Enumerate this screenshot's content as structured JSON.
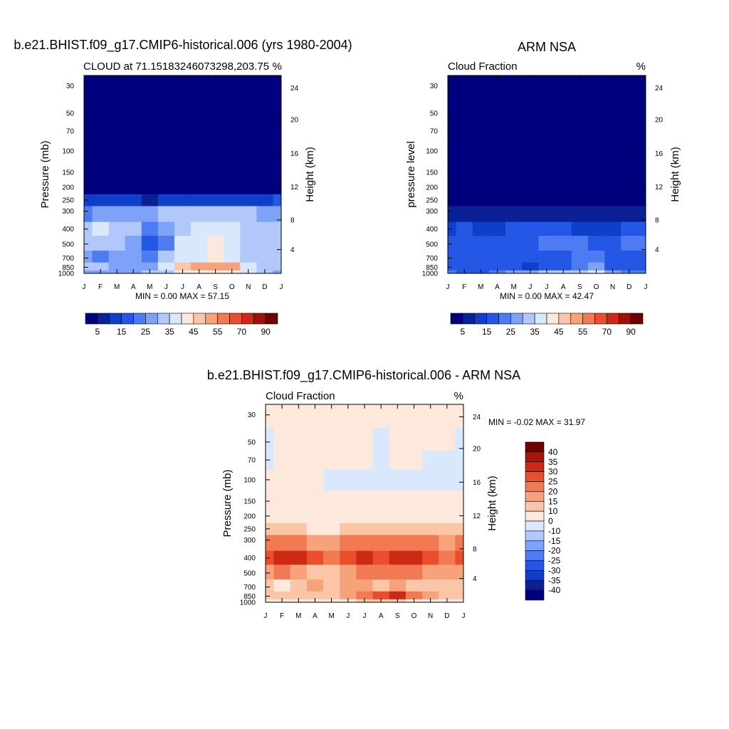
{
  "chart_data": [
    {
      "type": "heatmap",
      "title": "b.e21.BHIST.f09_g17.CMIP6-historical.006 (yrs 1980-2004)",
      "subtitle_left": "CLOUD at 71.15183246073298,203.75",
      "subtitle_right": "%",
      "ylabel": "Pressure (mb)",
      "ylabel_right": "Height (km)",
      "x_ticks": [
        "J",
        "F",
        "M",
        "A",
        "M",
        "J",
        "J",
        "A",
        "S",
        "O",
        "N",
        "D",
        "J"
      ],
      "y_ticks": [
        "30",
        "50",
        "70",
        "100",
        "150",
        "200",
        "250",
        "300",
        "400",
        "500",
        "700",
        "850",
        "1000"
      ],
      "y_ticks_right": [
        "24",
        "20",
        "16",
        "12",
        "8",
        "4"
      ],
      "min_max": "MIN =   0.00 MAX =  57.15",
      "colorbar_labels": [
        "5",
        "15",
        "25",
        "35",
        "45",
        "55",
        "70",
        "90"
      ],
      "colorbar_colors": [
        "#00007f",
        "#0a2196",
        "#0f3fc8",
        "#2557e6",
        "#4d7bf2",
        "#7ea2f8",
        "#b2c8fb",
        "#dae8fd",
        "#fde9db",
        "#fbc6a8",
        "#f7a27b",
        "#f27a52",
        "#ea4e2c",
        "#cc2a14",
        "#9b1208",
        "#6e0000"
      ],
      "z": [
        [
          0,
          0,
          0,
          0,
          0,
          0,
          0,
          0,
          0,
          0,
          0,
          0,
          0
        ],
        [
          0,
          0,
          0,
          0,
          0,
          0,
          0,
          0,
          0,
          0,
          0,
          0,
          0
        ],
        [
          0,
          0,
          0,
          0,
          0,
          0,
          0,
          0,
          0,
          0,
          0,
          0,
          0
        ],
        [
          0,
          0,
          0,
          0,
          0,
          0,
          0,
          0,
          0,
          0,
          0,
          0,
          0
        ],
        [
          1,
          1,
          1,
          1,
          1,
          1,
          1,
          1,
          1,
          1,
          1,
          1,
          1
        ],
        [
          4,
          3,
          3,
          2,
          2,
          3,
          3,
          3,
          3,
          3,
          3,
          3,
          4
        ],
        [
          14,
          12,
          10,
          10,
          9,
          12,
          12,
          12,
          13,
          13,
          13,
          14,
          15
        ],
        [
          22,
          25,
          26,
          27,
          28,
          31,
          33,
          31,
          31,
          31,
          31,
          29,
          26
        ],
        [
          34,
          36,
          33,
          30,
          24,
          28,
          34,
          38,
          38,
          35,
          33,
          31,
          30
        ],
        [
          33,
          34,
          31,
          25,
          17,
          24,
          37,
          39,
          40,
          38,
          31,
          31,
          31
        ],
        [
          27,
          23,
          28,
          28,
          22,
          30,
          36,
          38,
          40,
          39,
          32,
          31,
          31
        ],
        [
          31,
          30,
          28,
          29,
          29,
          36,
          46,
          50,
          54,
          50,
          36,
          31,
          30
        ],
        [
          28,
          27,
          27,
          29,
          30,
          34,
          40,
          42,
          43,
          44,
          36,
          30,
          29
        ]
      ]
    },
    {
      "type": "heatmap",
      "title": "ARM NSA",
      "subtitle_left": "Cloud Fraction",
      "subtitle_right": "%",
      "ylabel": "pressure level",
      "ylabel_right": "Height (km)",
      "x_ticks": [
        "J",
        "F",
        "M",
        "A",
        "M",
        "J",
        "J",
        "A",
        "S",
        "O",
        "N",
        "D",
        "J"
      ],
      "y_ticks": [
        "30",
        "50",
        "70",
        "100",
        "150",
        "200",
        "250",
        "300",
        "400",
        "500",
        "700",
        "850",
        "1000"
      ],
      "y_ticks_right": [
        "24",
        "20",
        "16",
        "12",
        "8",
        "4"
      ],
      "min_max": "MIN =   0.00 MAX =  42.47",
      "colorbar_labels": [
        "5",
        "15",
        "25",
        "35",
        "45",
        "55",
        "70",
        "90"
      ],
      "colorbar_colors": [
        "#00007f",
        "#0a2196",
        "#0f3fc8",
        "#2557e6",
        "#4d7bf2",
        "#7ea2f8",
        "#b2c8fb",
        "#dae8fd",
        "#fde9db",
        "#fbc6a8",
        "#f7a27b",
        "#f27a52",
        "#ea4e2c",
        "#cc2a14",
        "#9b1208",
        "#6e0000"
      ],
      "z": [
        [
          0,
          0,
          0,
          0,
          0,
          0,
          0,
          0,
          0,
          0,
          0,
          0,
          0
        ],
        [
          0,
          0,
          0,
          0,
          0,
          0,
          0,
          0,
          0,
          0,
          0,
          0,
          0
        ],
        [
          0,
          0,
          0,
          0,
          0,
          0,
          0,
          0,
          0,
          0,
          0,
          0,
          0
        ],
        [
          0,
          0,
          0,
          0,
          0,
          0,
          0,
          0,
          0,
          0,
          0,
          0,
          0
        ],
        [
          0,
          0,
          0,
          0,
          0,
          0,
          0,
          0,
          0,
          0,
          0,
          0,
          0
        ],
        [
          1,
          1,
          1,
          1,
          1,
          1,
          1,
          1,
          1,
          1,
          1,
          1,
          1
        ],
        [
          2,
          2,
          2,
          2,
          2,
          2,
          2,
          2,
          2,
          2,
          2,
          2,
          2
        ],
        [
          7,
          9,
          7,
          6,
          7,
          8,
          9,
          8,
          6,
          6,
          6,
          7,
          7
        ],
        [
          14,
          15,
          14,
          13,
          15,
          17,
          16,
          17,
          14,
          12,
          13,
          16,
          15
        ],
        [
          17,
          15,
          16,
          17,
          18,
          18,
          20,
          21,
          20,
          19,
          16,
          21,
          20
        ],
        [
          15,
          16,
          17,
          15,
          16,
          17,
          18,
          17,
          20,
          22,
          16,
          17,
          17
        ],
        [
          18,
          16,
          15,
          16,
          17,
          12,
          16,
          18,
          22,
          26,
          19,
          16,
          16
        ],
        [
          20,
          18,
          18,
          20,
          26,
          26,
          30,
          30,
          32,
          38,
          26,
          20,
          20
        ]
      ]
    },
    {
      "type": "heatmap",
      "title": "b.e21.BHIST.f09_g17.CMIP6-historical.006 - ARM NSA",
      "subtitle_left": "Cloud Fraction",
      "subtitle_right": "%",
      "ylabel": "Pressure (mb)",
      "ylabel_right": "Height (km)",
      "x_ticks": [
        "J",
        "F",
        "M",
        "A",
        "M",
        "J",
        "J",
        "A",
        "S",
        "O",
        "N",
        "D",
        "J"
      ],
      "y_ticks": [
        "30",
        "50",
        "70",
        "100",
        "150",
        "200",
        "250",
        "300",
        "400",
        "500",
        "700",
        "850",
        "1000"
      ],
      "y_ticks_right": [
        "24",
        "20",
        "16",
        "12",
        "8",
        "4"
      ],
      "min_max": "MIN =  -0.02 MAX =  31.97",
      "colorbar_labels": [
        "40",
        "35",
        "30",
        "25",
        "20",
        "15",
        "10",
        "0",
        "-10",
        "-15",
        "-20",
        "-25",
        "-30",
        "-35",
        "-40"
      ],
      "colorbar_colors": [
        "#6e0000",
        "#a51708",
        "#cc2a14",
        "#ea4e2c",
        "#f27a52",
        "#f7a27b",
        "#fbc6a8",
        "#fde9db",
        "#dae8fd",
        "#b2c8fb",
        "#7ea2f8",
        "#4d7bf2",
        "#2557e6",
        "#0f3fc8",
        "#0a2196",
        "#00007f"
      ],
      "z": [
        [
          2,
          2,
          2,
          2,
          2,
          2,
          2,
          2,
          2,
          2,
          2,
          2,
          2
        ],
        [
          -0.5,
          1,
          1,
          1,
          1,
          1,
          1,
          -0.5,
          1,
          1,
          1,
          1,
          -0.5
        ],
        [
          -0.5,
          1,
          1,
          1,
          1,
          1,
          1,
          -0.5,
          1,
          1,
          -0.5,
          -0.5,
          -0.5
        ],
        [
          2,
          2,
          2,
          2,
          -0.5,
          -0.5,
          -0.5,
          -0.5,
          -0.5,
          -0.5,
          -0.5,
          -0.5,
          -0.5
        ],
        [
          2,
          2,
          2,
          2,
          2,
          2,
          2,
          2,
          2,
          2,
          2,
          2,
          2
        ],
        [
          3,
          3,
          3,
          3,
          3,
          3,
          3,
          3,
          3,
          3,
          3,
          3,
          3
        ],
        [
          12,
          10,
          10,
          8,
          8,
          10,
          12,
          12,
          12,
          12,
          10,
          10,
          12
        ],
        [
          20,
          20,
          20,
          18,
          18,
          22,
          24,
          22,
          22,
          22,
          20,
          18,
          20
        ],
        [
          28,
          30,
          30,
          26,
          22,
          26,
          30,
          28,
          30,
          30,
          26,
          22,
          28
        ],
        [
          18,
          20,
          18,
          14,
          10,
          16,
          22,
          20,
          20,
          22,
          18,
          16,
          18
        ],
        [
          12,
          8,
          14,
          16,
          10,
          16,
          16,
          12,
          18,
          14,
          12,
          10,
          14
        ],
        [
          14,
          14,
          14,
          14,
          12,
          18,
          22,
          26,
          30,
          24,
          16,
          14,
          14
        ],
        [
          8,
          8,
          8,
          8,
          6,
          8,
          10,
          12,
          12,
          8,
          8,
          8,
          8
        ]
      ]
    }
  ]
}
